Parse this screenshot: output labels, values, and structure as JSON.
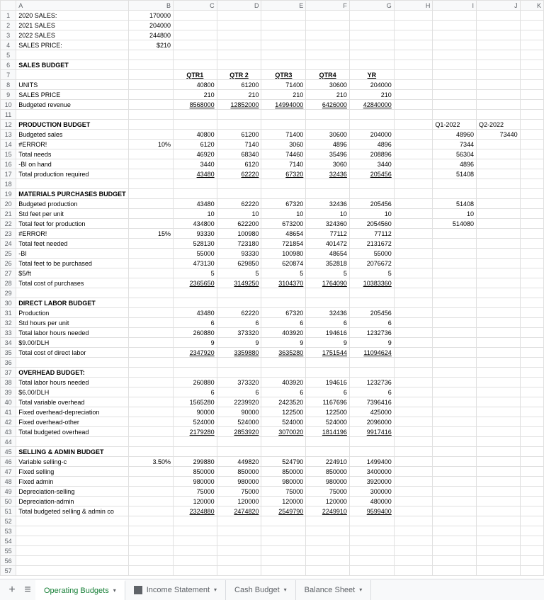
{
  "columns": [
    "A",
    "B",
    "C",
    "D",
    "E",
    "F",
    "G",
    "H",
    "I",
    "J",
    "K"
  ],
  "rows": [
    {
      "n": 1,
      "A": "2020 SALES:",
      "B": "170000"
    },
    {
      "n": 2,
      "A": "2021 SALES",
      "B": "204000"
    },
    {
      "n": 3,
      "A": "2022 SALES",
      "B": "244800"
    },
    {
      "n": 4,
      "A": "SALES PRICE:",
      "B": "$210"
    },
    {
      "n": 5
    },
    {
      "n": 6,
      "A": "SALES BUDGET",
      "bold": [
        "A"
      ]
    },
    {
      "n": 7,
      "C": "QTR1",
      "D": "QTR 2",
      "E": "QTR3",
      "F": "QTR4",
      "G": "YR",
      "bold": [
        "C",
        "D",
        "E",
        "F",
        "G"
      ],
      "ul": [
        "C",
        "D",
        "E",
        "F",
        "G"
      ],
      "center": [
        "C",
        "D",
        "E",
        "F",
        "G"
      ]
    },
    {
      "n": 8,
      "A": "UNITS",
      "C": "40800",
      "D": "61200",
      "E": "71400",
      "F": "30600",
      "G": "204000"
    },
    {
      "n": 9,
      "A": "SALES PRICE",
      "C": "210",
      "D": "210",
      "E": "210",
      "F": "210",
      "G": "210"
    },
    {
      "n": 10,
      "A": "Budgeted revenue",
      "C": "8568000",
      "D": "12852000",
      "E": "14994000",
      "F": "6426000",
      "G": "42840000",
      "ul": [
        "C",
        "D",
        "E",
        "F",
        "G"
      ]
    },
    {
      "n": 11
    },
    {
      "n": 12,
      "A": "PRODUCTION BUDGET",
      "I": "Q1-2022",
      "J": "Q2-2022",
      "bold": [
        "A"
      ],
      "left": [
        "I",
        "J"
      ]
    },
    {
      "n": 13,
      "A": "Budgeted sales",
      "C": "40800",
      "D": "61200",
      "E": "71400",
      "F": "30600",
      "G": "204000",
      "I": "48960",
      "J": "73440"
    },
    {
      "n": 14,
      "A": "#ERROR!",
      "B": "10%",
      "C": "6120",
      "D": "7140",
      "E": "3060",
      "F": "4896",
      "G": "4896",
      "I": "7344"
    },
    {
      "n": 15,
      "A": "Total needs",
      "C": "46920",
      "D": "68340",
      "E": "74460",
      "F": "35496",
      "G": "208896",
      "I": "56304"
    },
    {
      "n": 16,
      "A": "-BI on hand",
      "C": "3440",
      "D": "6120",
      "E": "7140",
      "F": "3060",
      "G": "3440",
      "I": "4896"
    },
    {
      "n": 17,
      "A": "Total production required",
      "C": "43480",
      "D": "62220",
      "E": "67320",
      "F": "32436",
      "G": "205456",
      "I": "51408",
      "ul": [
        "C",
        "D",
        "E",
        "F",
        "G"
      ]
    },
    {
      "n": 18
    },
    {
      "n": 19,
      "A": "MATERIALS PURCHASES BUDGET",
      "bold": [
        "A"
      ]
    },
    {
      "n": 20,
      "A": "Budgeted production",
      "C": "43480",
      "D": "62220",
      "E": "67320",
      "F": "32436",
      "G": "205456",
      "I": "51408"
    },
    {
      "n": 21,
      "A": "Std feet per unit",
      "C": "10",
      "D": "10",
      "E": "10",
      "F": "10",
      "G": "10",
      "I": "10"
    },
    {
      "n": 22,
      "A": "Total feet for production",
      "C": "434800",
      "D": "622200",
      "E": "673200",
      "F": "324360",
      "G": "2054560",
      "I": "514080"
    },
    {
      "n": 23,
      "A": "#ERROR!",
      "B": "15%",
      "C": "93330",
      "D": "100980",
      "E": "48654",
      "F": "77112",
      "G": "77112"
    },
    {
      "n": 24,
      "A": "Total feet needed",
      "C": "528130",
      "D": "723180",
      "E": "721854",
      "F": "401472",
      "G": "2131672"
    },
    {
      "n": 25,
      "A": "-BI",
      "C": "55000",
      "D": "93330",
      "E": "100980",
      "F": "48654",
      "G": "55000"
    },
    {
      "n": 26,
      "A": "Total feet to be purchased",
      "C": "473130",
      "D": "629850",
      "E": "620874",
      "F": "352818",
      "G": "2076672"
    },
    {
      "n": 27,
      "A": "$5/ft",
      "C": "5",
      "D": "5",
      "E": "5",
      "F": "5",
      "G": "5"
    },
    {
      "n": 28,
      "A": "Total cost of purchases",
      "C": "2365650",
      "D": "3149250",
      "E": "3104370",
      "F": "1764090",
      "G": "10383360",
      "ul": [
        "C",
        "D",
        "E",
        "F",
        "G"
      ]
    },
    {
      "n": 29
    },
    {
      "n": 30,
      "A": "DIRECT LABOR BUDGET",
      "bold": [
        "A"
      ]
    },
    {
      "n": 31,
      "A": "Production",
      "C": "43480",
      "D": "62220",
      "E": "67320",
      "F": "32436",
      "G": "205456"
    },
    {
      "n": 32,
      "A": "Std hours per unit",
      "C": "6",
      "D": "6",
      "E": "6",
      "F": "6",
      "G": "6"
    },
    {
      "n": 33,
      "A": "Total labor hours needed",
      "C": "260880",
      "D": "373320",
      "E": "403920",
      "F": "194616",
      "G": "1232736"
    },
    {
      "n": 34,
      "A": "$9.00/DLH",
      "C": "9",
      "D": "9",
      "E": "9",
      "F": "9",
      "G": "9"
    },
    {
      "n": 35,
      "A": "Total cost of direct labor",
      "C": "2347920",
      "D": "3359880",
      "E": "3635280",
      "F": "1751544",
      "G": "11094624",
      "ul": [
        "C",
        "D",
        "E",
        "F",
        "G"
      ]
    },
    {
      "n": 36
    },
    {
      "n": 37,
      "A": "OVERHEAD BUDGET:",
      "bold": [
        "A"
      ]
    },
    {
      "n": 38,
      "A": "Total labor hours needed",
      "C": "260880",
      "D": "373320",
      "E": "403920",
      "F": "194616",
      "G": "1232736"
    },
    {
      "n": 39,
      "A": "$6.00/DLH",
      "C": "6",
      "D": "6",
      "E": "6",
      "F": "6",
      "G": "6"
    },
    {
      "n": 40,
      "A": "Total variable overhead",
      "C": "1565280",
      "D": "2239920",
      "E": "2423520",
      "F": "1167696",
      "G": "7396416"
    },
    {
      "n": 41,
      "A": "Fixed overhead-depreciation",
      "C": "90000",
      "D": "90000",
      "E": "122500",
      "F": "122500",
      "G": "425000"
    },
    {
      "n": 42,
      "A": "Fixed overhead-other",
      "C": "524000",
      "D": "524000",
      "E": "524000",
      "F": "524000",
      "G": "2096000"
    },
    {
      "n": 43,
      "A": "Total budgeted overhead",
      "C": "2179280",
      "D": "2853920",
      "E": "3070020",
      "F": "1814196",
      "G": "9917416",
      "ul": [
        "C",
        "D",
        "E",
        "F",
        "G"
      ]
    },
    {
      "n": 44
    },
    {
      "n": 45,
      "A": "SELLING & ADMIN BUDGET",
      "bold": [
        "A"
      ]
    },
    {
      "n": 46,
      "A": "Variable selling-c",
      "B": "3.50%",
      "C": "299880",
      "D": "449820",
      "E": "524790",
      "F": "224910",
      "G": "1499400"
    },
    {
      "n": 47,
      "A": "Fixed selling",
      "C": "850000",
      "D": "850000",
      "E": "850000",
      "F": "850000",
      "G": "3400000"
    },
    {
      "n": 48,
      "A": "Fixed admin",
      "C": "980000",
      "D": "980000",
      "E": "980000",
      "F": "980000",
      "G": "3920000"
    },
    {
      "n": 49,
      "A": "Depreciation-selling",
      "C": "75000",
      "D": "75000",
      "E": "75000",
      "F": "75000",
      "G": "300000"
    },
    {
      "n": 50,
      "A": "Depreciation-admin",
      "C": "120000",
      "D": "120000",
      "E": "120000",
      "F": "120000",
      "G": "480000"
    },
    {
      "n": 51,
      "A": "Total budgeted selling & admin co",
      "C": "2324880",
      "D": "2474820",
      "E": "2549790",
      "F": "2249910",
      "G": "9599400",
      "ul": [
        "C",
        "D",
        "E",
        "F",
        "G"
      ]
    },
    {
      "n": 52
    },
    {
      "n": 53
    },
    {
      "n": 54
    },
    {
      "n": 55
    },
    {
      "n": 56
    },
    {
      "n": 57
    }
  ],
  "tabs": {
    "add": "+",
    "menu": "≡",
    "items": [
      {
        "label": "Operating Budgets",
        "active": true
      },
      {
        "label": "Income Statement",
        "icon": true
      },
      {
        "label": "Cash Budget"
      },
      {
        "label": "Balance Sheet"
      }
    ]
  }
}
